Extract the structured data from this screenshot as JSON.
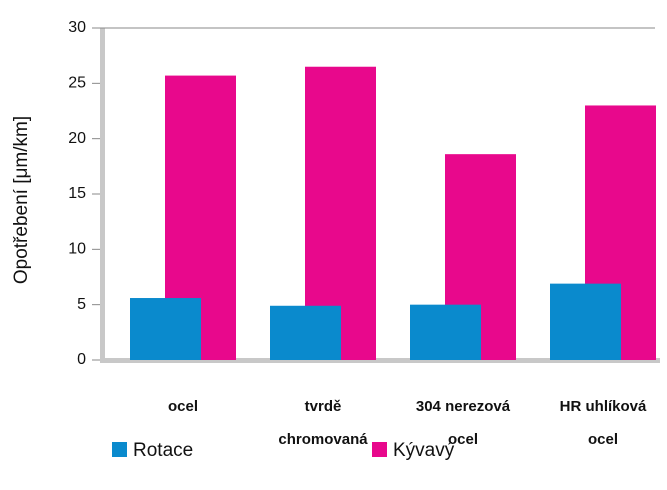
{
  "chart_data": {
    "type": "bar",
    "ylabel": "Opotřebení [μm/km]",
    "categories": [
      "ocel",
      "tvrdě\nchromovaná",
      "304 nerezová\nocel",
      "HR uhlíková\nocel"
    ],
    "series": [
      {
        "name": "Rotace",
        "color": "#0a8acd",
        "values": [
          5.6,
          4.9,
          5.0,
          6.9
        ]
      },
      {
        "name": "Kývavý",
        "color": "#e8088c",
        "values": [
          25.7,
          26.5,
          18.6,
          23.0
        ]
      }
    ],
    "ylim": [
      0,
      30
    ],
    "yticks": [
      0,
      5,
      10,
      15,
      20,
      25,
      30
    ]
  }
}
